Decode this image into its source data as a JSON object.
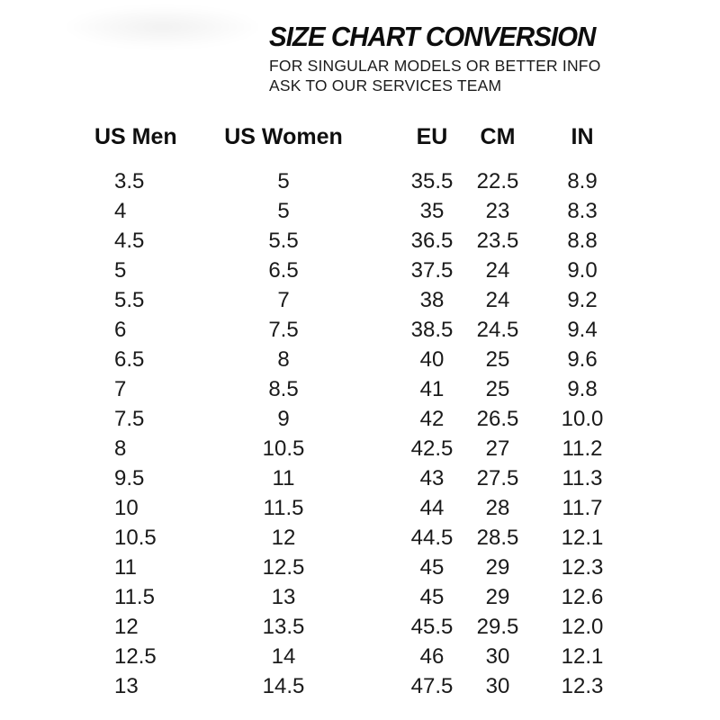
{
  "page": {
    "background": "#ffffff",
    "text_color": "#1a1a1a"
  },
  "header": {
    "title": "SIZE CHART CONVERSION",
    "subtitle_line1": "FOR SINGULAR MODELS OR BETTER INFO",
    "subtitle_line2": "ASK TO OUR SERVICES TEAM"
  },
  "chart_data": {
    "type": "table",
    "title": "SIZE CHART CONVERSION",
    "columns": [
      "US Men",
      "US Women",
      "EU",
      "CM",
      "IN"
    ],
    "rows": [
      [
        "3.5",
        "5",
        "35.5",
        "22.5",
        "8.9"
      ],
      [
        "4",
        "5",
        "35",
        "23",
        "8.3"
      ],
      [
        "4.5",
        "5.5",
        "36.5",
        "23.5",
        "8.8"
      ],
      [
        "5",
        "6.5",
        "37.5",
        "24",
        "9.0"
      ],
      [
        "5.5",
        "7",
        "38",
        "24",
        "9.2"
      ],
      [
        "6",
        "7.5",
        "38.5",
        "24.5",
        "9.4"
      ],
      [
        "6.5",
        "8",
        "40",
        "25",
        "9.6"
      ],
      [
        "7",
        "8.5",
        "41",
        "25",
        "9.8"
      ],
      [
        "7.5",
        "9",
        "42",
        "26.5",
        "10.0"
      ],
      [
        "8",
        "10.5",
        "42.5",
        "27",
        "11.2"
      ],
      [
        "9.5",
        "11",
        "43",
        "27.5",
        "11.3"
      ],
      [
        "10",
        "11.5",
        "44",
        "28",
        "11.7"
      ],
      [
        "10.5",
        "12",
        "44.5",
        "28.5",
        "12.1"
      ],
      [
        "11",
        "12.5",
        "45",
        "29",
        "12.3"
      ],
      [
        "11.5",
        "13",
        "45",
        "29",
        "12.6"
      ],
      [
        "12",
        "13.5",
        "45.5",
        "29.5",
        "12.0"
      ],
      [
        "12.5",
        "14",
        "46",
        "30",
        "12.1"
      ],
      [
        "13",
        "14.5",
        "47.5",
        "30",
        "12.3"
      ]
    ]
  }
}
